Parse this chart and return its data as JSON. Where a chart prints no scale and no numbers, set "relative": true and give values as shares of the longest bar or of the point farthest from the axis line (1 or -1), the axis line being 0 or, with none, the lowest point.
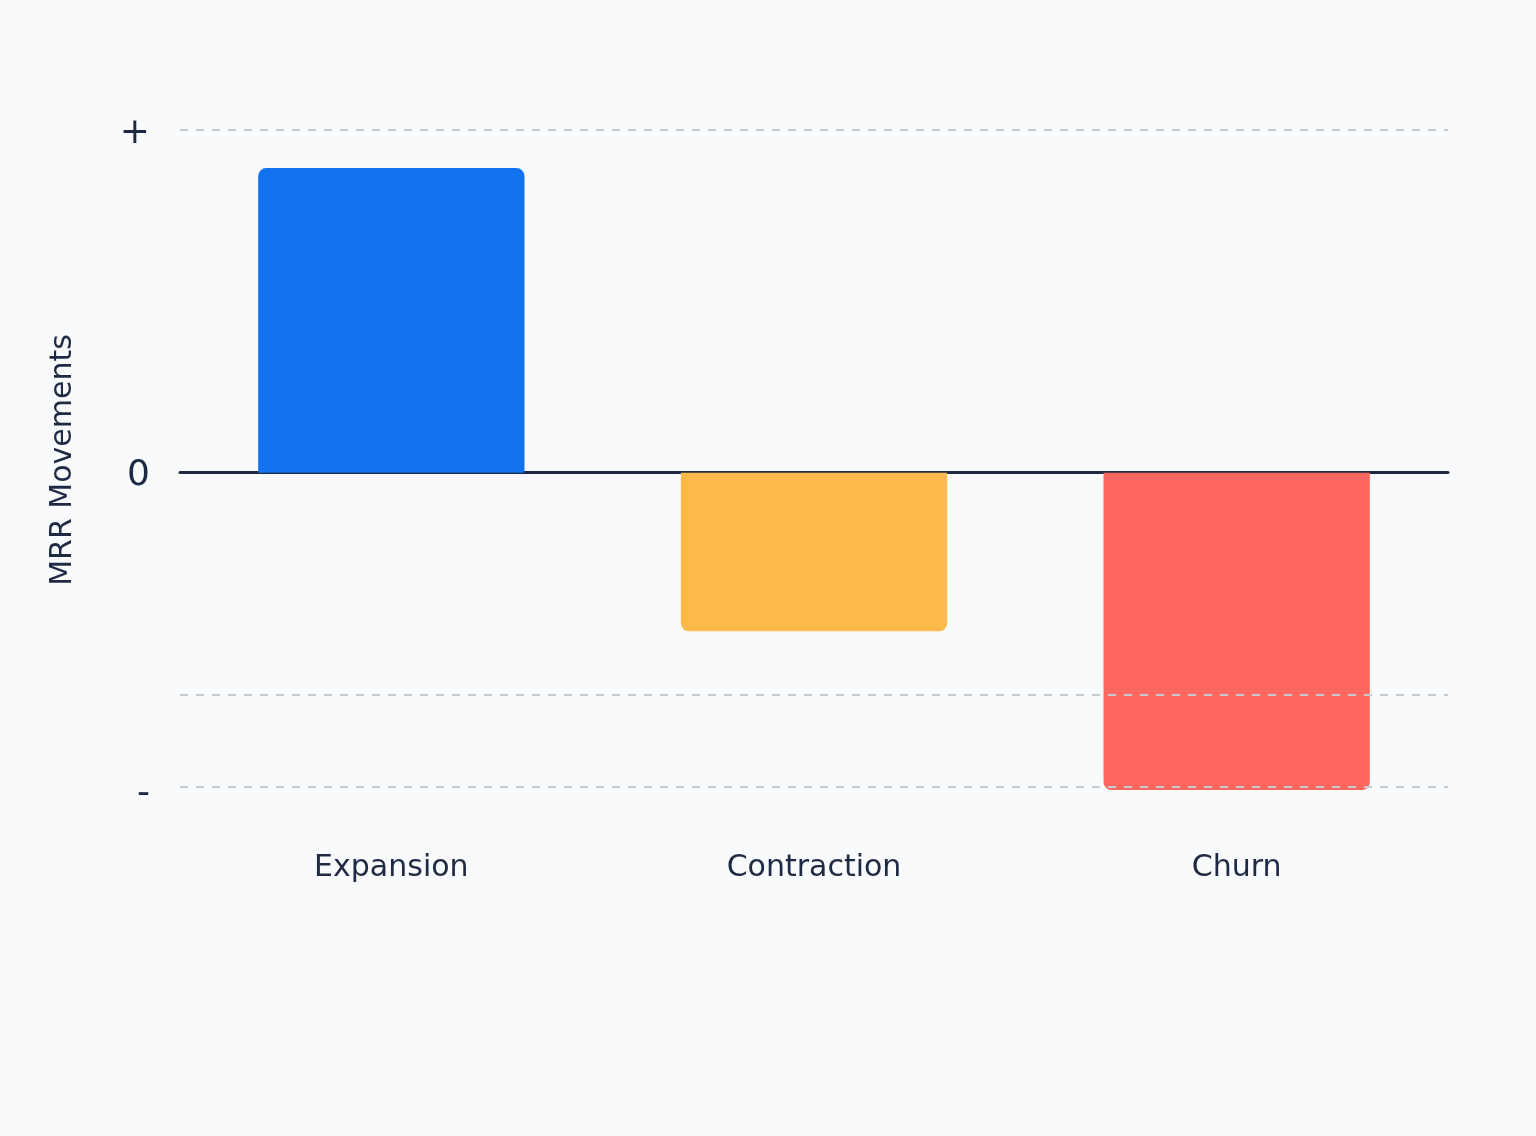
{
  "chart_data": {
    "type": "bar",
    "relative": true,
    "ylabel": "MRR Movements",
    "categories": [
      "Expansion",
      "Contraction",
      "Churn"
    ],
    "values": [
      0.96,
      -0.5,
      -1
    ],
    "colors": [
      "#1273f0",
      "#fdba4a",
      "#fe6660"
    ],
    "annotations": [
      "+",
      "0",
      "-"
    ],
    "ref_lines": [
      {
        "axis": "y",
        "value": 1.08,
        "color": "#c5ccd6",
        "line_style": "dashed"
      },
      {
        "axis": "y",
        "value": -0.7,
        "color": "#c5ccd6",
        "line_style": "dashed"
      },
      {
        "axis": "y",
        "value": -0.99,
        "color": "#c5ccd6",
        "line_style": "dashed"
      }
    ]
  }
}
